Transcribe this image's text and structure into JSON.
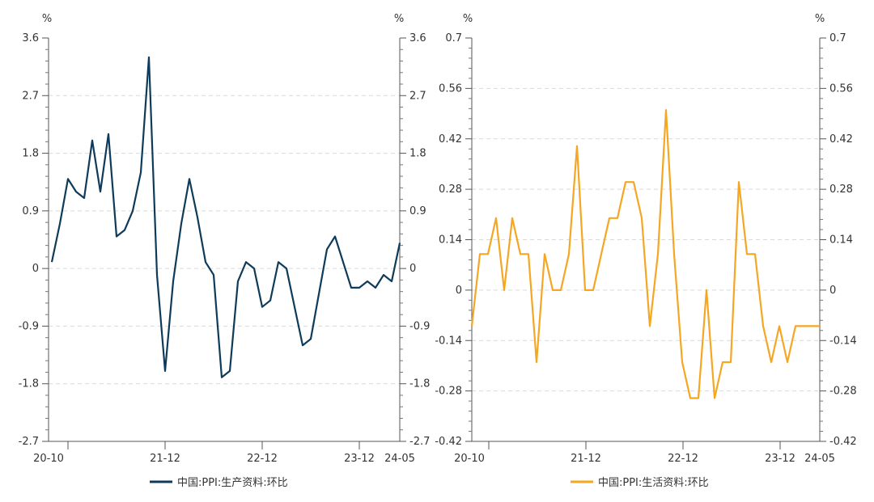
{
  "charts": [
    {
      "type": "line",
      "unit_left": "%",
      "unit_right": "%",
      "x_tick_labels": [
        "20-10",
        "21-12",
        "22-12",
        "23-12",
        "24-05"
      ],
      "y_ticks": [
        "3.6",
        "2.7",
        "1.8",
        "0.9",
        "0",
        "-0.9",
        "-1.8",
        "-2.7"
      ],
      "ylim": [
        -2.7,
        3.6
      ],
      "series": [
        {
          "name": "中国:PPI:生产资料:环比",
          "color": "#0f3b5a",
          "values": [
            0.1,
            0.7,
            1.4,
            1.2,
            1.1,
            2.0,
            1.2,
            2.1,
            0.5,
            0.6,
            0.9,
            1.5,
            3.3,
            -0.1,
            -1.6,
            -0.2,
            0.7,
            1.4,
            0.8,
            0.1,
            -0.1,
            -1.7,
            -1.6,
            -0.2,
            0.1,
            0.0,
            -0.6,
            -0.5,
            0.1,
            0.0,
            -0.6,
            -1.2,
            -1.1,
            -0.4,
            0.3,
            0.5,
            0.1,
            -0.3,
            -0.3,
            -0.2,
            -0.3,
            -0.1,
            -0.2,
            0.4
          ]
        }
      ]
    },
    {
      "type": "line",
      "unit_left": "%",
      "unit_right": "%",
      "x_tick_labels": [
        "20-10",
        "21-12",
        "22-12",
        "23-12",
        "24-05"
      ],
      "y_ticks": [
        "0.7",
        "0.56",
        "0.42",
        "0.28",
        "0.14",
        "0",
        "-0.14",
        "-0.28",
        "-0.42"
      ],
      "ylim": [
        -0.42,
        0.7
      ],
      "series": [
        {
          "name": "中国:PPI:生活资料:环比",
          "color": "#f5a623",
          "values": [
            -0.1,
            0.1,
            0.1,
            0.2,
            0.0,
            0.2,
            0.1,
            0.1,
            -0.2,
            0.1,
            0.0,
            0.0,
            0.1,
            0.4,
            0.0,
            0.0,
            0.1,
            0.2,
            0.2,
            0.3,
            0.3,
            0.2,
            -0.1,
            0.1,
            0.5,
            0.1,
            -0.2,
            -0.3,
            -0.3,
            0.0,
            -0.3,
            -0.2,
            -0.2,
            0.3,
            0.1,
            0.1,
            -0.1,
            -0.2,
            -0.1,
            -0.2,
            -0.1,
            -0.1,
            -0.1,
            -0.1
          ]
        }
      ]
    }
  ]
}
